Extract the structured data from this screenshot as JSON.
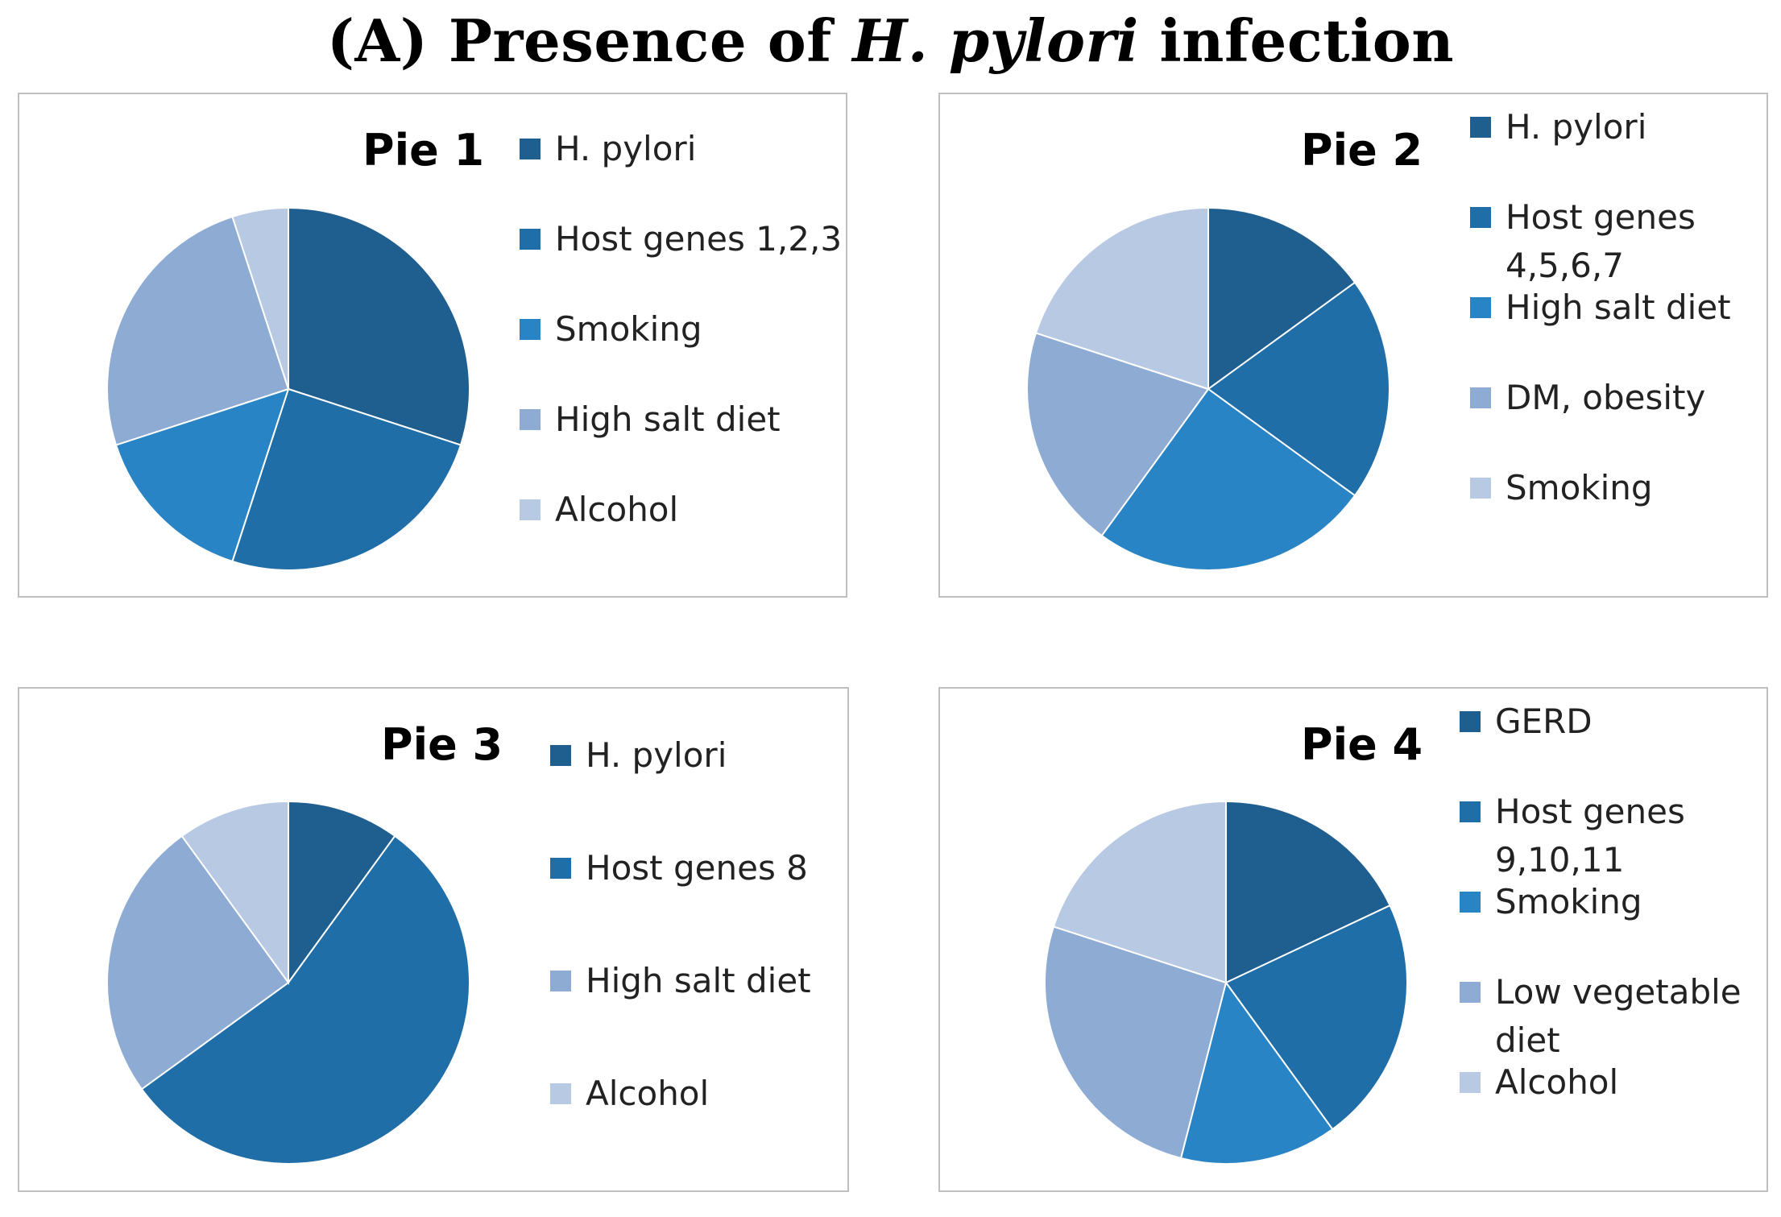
{
  "title": {
    "prefix": "(A) Presence of ",
    "italic": "H. pylori",
    "suffix": " infection"
  },
  "colors": [
    "#1f5f8f",
    "#1f6ea8",
    "#2884c4",
    "#8eabd3",
    "#b8c9e4"
  ],
  "chart_data": [
    {
      "type": "pie",
      "title": "Pie 1",
      "categories": [
        "H. pylori",
        "Host genes 1,2,3",
        "Smoking",
        "High salt diet",
        "Alcohol"
      ],
      "legend": [
        [
          "H. pylori"
        ],
        [
          "Host genes 1,2,3"
        ],
        [
          "Smoking"
        ],
        [
          "High salt diet"
        ],
        [
          "Alcohol"
        ]
      ],
      "values": [
        30,
        25,
        15,
        25,
        5
      ],
      "colors": [
        "#1f5f8f",
        "#1f6ea8",
        "#2884c4",
        "#8eabd3",
        "#b8c9e4"
      ]
    },
    {
      "type": "pie",
      "title": "Pie 2",
      "categories": [
        "H. pylori",
        "Host genes 4,5,6,7",
        "High salt diet",
        "DM, obesity",
        "Smoking"
      ],
      "legend": [
        [
          "H. pylori"
        ],
        [
          "Host genes",
          "4,5,6,7"
        ],
        [
          "High salt diet"
        ],
        [
          "DM, obesity"
        ],
        [
          "Smoking"
        ]
      ],
      "values": [
        15,
        20,
        25,
        20,
        20
      ],
      "colors": [
        "#1f5f8f",
        "#1f6ea8",
        "#2884c4",
        "#8eabd3",
        "#b8c9e4"
      ]
    },
    {
      "type": "pie",
      "title": "Pie 3",
      "categories": [
        "H. pylori",
        "Host genes 8",
        "High salt diet",
        "Alcohol"
      ],
      "legend": [
        [
          "H. pylori"
        ],
        [
          "Host genes 8"
        ],
        [
          "High salt diet"
        ],
        [
          "Alcohol"
        ]
      ],
      "values": [
        10,
        55,
        25,
        10
      ],
      "colors": [
        "#1f5f8f",
        "#1f6ea8",
        "#8eabd3",
        "#b8c9e4"
      ]
    },
    {
      "type": "pie",
      "title": "Pie 4",
      "categories": [
        "GERD",
        "Host genes 9,10,11",
        "Smoking",
        "Low vegetable diet",
        "Alcohol"
      ],
      "legend": [
        [
          "GERD"
        ],
        [
          "Host genes",
          "9,10,11"
        ],
        [
          "Smoking"
        ],
        [
          "Low vegetable",
          "diet"
        ],
        [
          "Alcohol"
        ]
      ],
      "values": [
        18,
        22,
        14,
        26,
        20
      ],
      "colors": [
        "#1f5f8f",
        "#1f6ea8",
        "#2884c4",
        "#8eabd3",
        "#b8c9e4"
      ]
    }
  ]
}
